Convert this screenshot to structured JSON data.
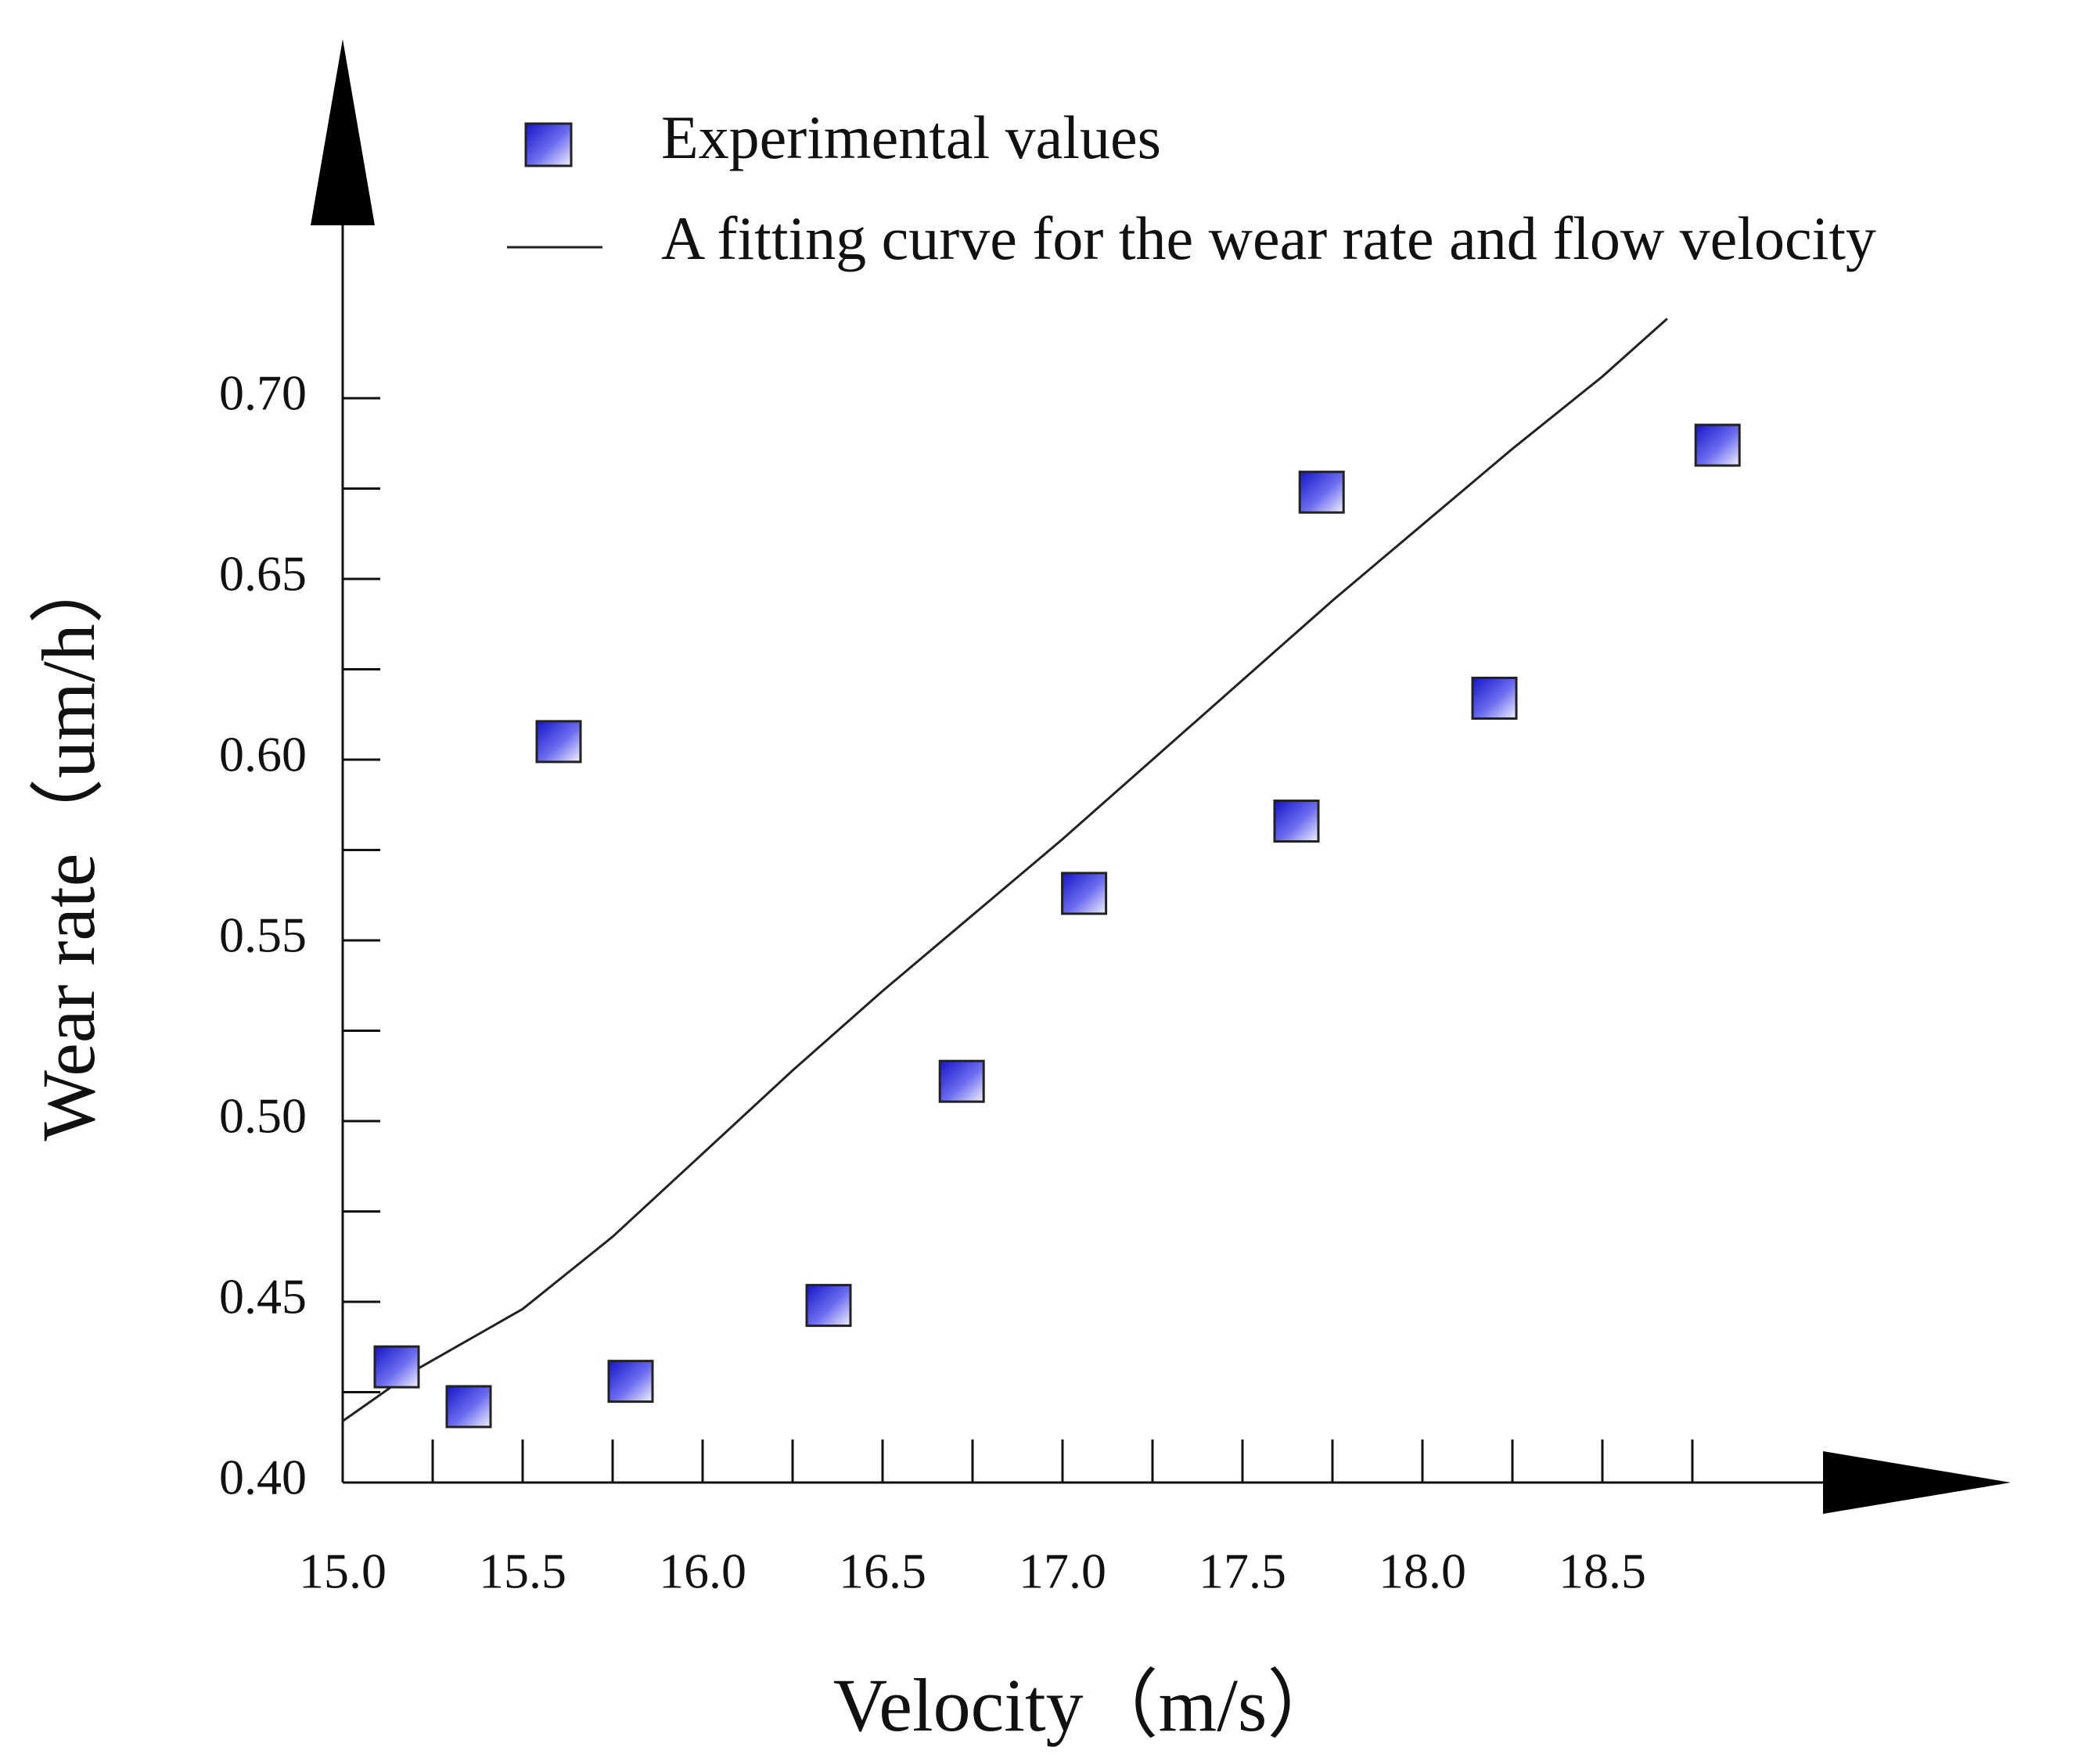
{
  "chart_data": {
    "type": "scatter",
    "title": "",
    "xlabel": "Velocity（m/s）",
    "ylabel": "Wear rate（um/h）",
    "xlim": [
      15.0,
      19.0
    ],
    "ylim": [
      0.4,
      0.7
    ],
    "x_ticks": [
      "15.0",
      "15.5",
      "16.0",
      "16.5",
      "17.0",
      "17.5",
      "18.0",
      "18.5"
    ],
    "y_ticks": [
      "0.40",
      "0.45",
      "0.50",
      "0.55",
      "0.60",
      "0.65",
      "0.70"
    ],
    "grid": false,
    "legend": "top",
    "series": [
      {
        "name": "Experimental values",
        "type": "scatter",
        "color": "#2b2bd8",
        "x": [
          15.15,
          15.35,
          15.6,
          15.8,
          16.35,
          16.72,
          17.06,
          17.65,
          17.72,
          18.2,
          18.82
        ],
        "y": [
          0.432,
          0.421,
          0.605,
          0.428,
          0.449,
          0.511,
          0.563,
          0.583,
          0.674,
          0.617,
          0.687
        ]
      },
      {
        "name": "A fitting curve for the wear rate and flow velocity",
        "type": "line",
        "color": "#222222",
        "x": [
          15.0,
          15.2,
          15.5,
          15.75,
          16.0,
          16.25,
          16.5,
          16.75,
          17.0,
          17.25,
          17.5,
          17.75,
          18.0,
          18.25,
          18.5,
          18.68
        ],
        "y": [
          0.417,
          0.431,
          0.448,
          0.468,
          0.491,
          0.514,
          0.536,
          0.557,
          0.578,
          0.6,
          0.622,
          0.644,
          0.665,
          0.686,
          0.706,
          0.722
        ]
      }
    ]
  }
}
